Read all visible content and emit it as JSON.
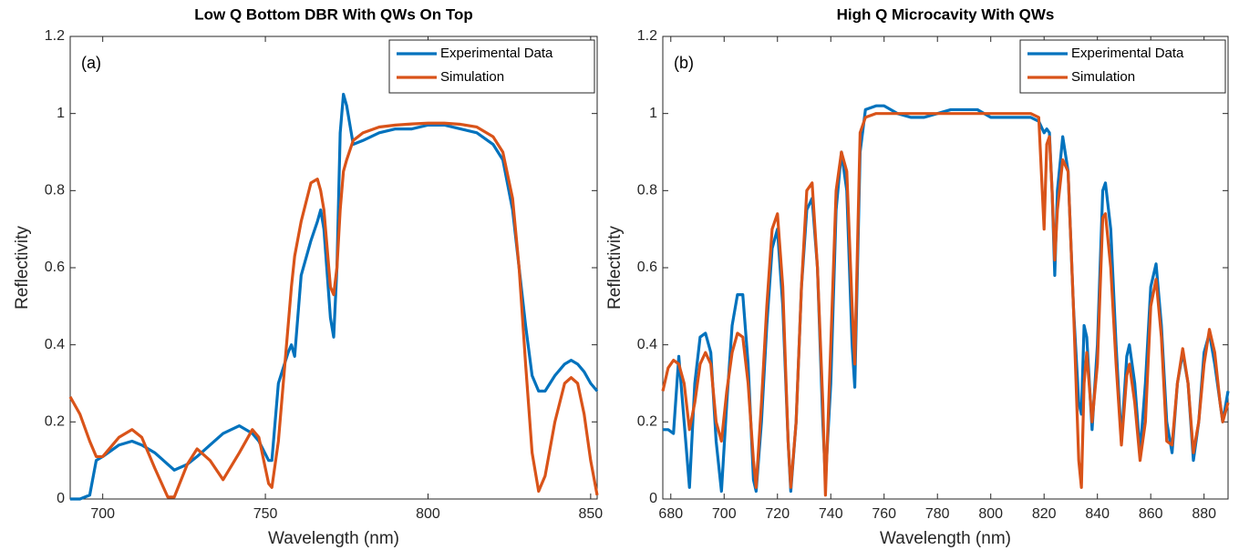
{
  "chart_data": [
    {
      "type": "line",
      "title": "Low Q Bottom DBR With QWs On Top",
      "x_label": "Wavelength (nm)",
      "y_label": "Reflectivity",
      "annotation": "(a)",
      "legend": "upper right",
      "x": [
        690,
        693,
        696,
        698,
        700,
        705,
        709,
        712,
        716,
        720,
        722,
        726,
        729,
        733,
        737,
        742,
        746,
        748,
        751,
        752,
        754,
        757,
        758,
        759,
        761,
        764,
        766,
        767,
        768,
        770,
        771,
        772,
        773,
        774,
        775,
        777,
        780,
        785,
        790,
        795,
        800,
        805,
        810,
        815,
        820,
        823,
        826,
        828,
        830,
        832,
        834,
        836,
        839,
        842,
        844,
        846,
        848,
        850,
        852
      ],
      "series": [
        {
          "name": "Experimental Data",
          "color": "#0072bd",
          "values": [
            0,
            0,
            0.01,
            0.1,
            0.11,
            0.14,
            0.15,
            0.14,
            0.12,
            0.09,
            0.075,
            0.09,
            0.11,
            0.14,
            0.17,
            0.19,
            0.17,
            0.15,
            0.1,
            0.1,
            0.3,
            0.38,
            0.4,
            0.37,
            0.58,
            0.67,
            0.72,
            0.75,
            0.7,
            0.47,
            0.42,
            0.6,
            0.95,
            1.05,
            1.02,
            0.92,
            0.93,
            0.95,
            0.96,
            0.96,
            0.97,
            0.97,
            0.96,
            0.95,
            0.92,
            0.88,
            0.75,
            0.6,
            0.45,
            0.32,
            0.28,
            0.28,
            0.32,
            0.35,
            0.36,
            0.35,
            0.33,
            0.3,
            0.28
          ]
        },
        {
          "name": "Simulation",
          "color": "#d95319",
          "values": [
            0.265,
            0.22,
            0.15,
            0.11,
            0.11,
            0.16,
            0.18,
            0.16,
            0.08,
            0.005,
            0.005,
            0.09,
            0.13,
            0.1,
            0.05,
            0.12,
            0.18,
            0.16,
            0.04,
            0.03,
            0.15,
            0.45,
            0.55,
            0.63,
            0.72,
            0.82,
            0.83,
            0.8,
            0.75,
            0.55,
            0.53,
            0.6,
            0.75,
            0.85,
            0.88,
            0.93,
            0.95,
            0.965,
            0.97,
            0.973,
            0.975,
            0.975,
            0.972,
            0.965,
            0.94,
            0.9,
            0.78,
            0.6,
            0.35,
            0.12,
            0.02,
            0.06,
            0.2,
            0.3,
            0.315,
            0.3,
            0.22,
            0.1,
            0.01
          ]
        }
      ],
      "xlim": [
        690,
        852
      ],
      "xticks": [
        700,
        750,
        800,
        850
      ],
      "ylim": [
        0,
        1.2
      ],
      "yticks": [
        0,
        0.2,
        0.4,
        0.6,
        0.8,
        1,
        1.2
      ]
    },
    {
      "type": "line",
      "title": "High Q Microcavity With QWs",
      "x_label": "Wavelength (nm)",
      "y_label": "Reflectivity",
      "annotation": "(b)",
      "legend": "upper right",
      "x": [
        677,
        679,
        681,
        683,
        685,
        687,
        689,
        691,
        693,
        695,
        697,
        699,
        701,
        703,
        705,
        707,
        709,
        711,
        712,
        714,
        716,
        718,
        720,
        722,
        724,
        725,
        727,
        729,
        731,
        733,
        735,
        737,
        738,
        740,
        742,
        744,
        746,
        748,
        749,
        751,
        753,
        757,
        760,
        765,
        770,
        775,
        780,
        785,
        790,
        795,
        800,
        805,
        810,
        815,
        818,
        820,
        821,
        822,
        823,
        824,
        825,
        827,
        829,
        831,
        833,
        834,
        835,
        836,
        838,
        840,
        842,
        843,
        845,
        847,
        849,
        851,
        852,
        854,
        856,
        858,
        860,
        862,
        864,
        866,
        868,
        870,
        872,
        874,
        876,
        878,
        880,
        882,
        884,
        886,
        887,
        889
      ],
      "series": [
        {
          "name": "Experimental Data",
          "color": "#0072bd",
          "values": [
            0.18,
            0.18,
            0.17,
            0.37,
            0.2,
            0.03,
            0.3,
            0.42,
            0.43,
            0.38,
            0.15,
            0.02,
            0.25,
            0.45,
            0.53,
            0.53,
            0.35,
            0.05,
            0.02,
            0.2,
            0.45,
            0.65,
            0.7,
            0.5,
            0.15,
            0.02,
            0.2,
            0.55,
            0.75,
            0.78,
            0.6,
            0.2,
            0.05,
            0.3,
            0.75,
            0.9,
            0.8,
            0.4,
            0.29,
            0.9,
            1.01,
            1.02,
            1.02,
            1,
            0.99,
            0.99,
            1,
            1.01,
            1.01,
            1.01,
            0.99,
            0.99,
            0.99,
            0.99,
            0.98,
            0.95,
            0.96,
            0.95,
            0.8,
            0.58,
            0.8,
            0.94,
            0.85,
            0.5,
            0.25,
            0.22,
            0.45,
            0.42,
            0.18,
            0.4,
            0.8,
            0.82,
            0.7,
            0.4,
            0.15,
            0.37,
            0.4,
            0.3,
            0.12,
            0.3,
            0.55,
            0.61,
            0.45,
            0.2,
            0.12,
            0.3,
            0.38,
            0.3,
            0.1,
            0.2,
            0.38,
            0.43,
            0.35,
            0.25,
            0.2,
            0.28
          ]
        },
        {
          "name": "Simulation",
          "color": "#d95319",
          "values": [
            0.28,
            0.34,
            0.36,
            0.35,
            0.3,
            0.18,
            0.25,
            0.35,
            0.38,
            0.35,
            0.2,
            0.15,
            0.28,
            0.38,
            0.43,
            0.42,
            0.3,
            0.1,
            0.03,
            0.25,
            0.5,
            0.7,
            0.74,
            0.55,
            0.15,
            0.03,
            0.2,
            0.55,
            0.8,
            0.82,
            0.6,
            0.25,
            0.01,
            0.4,
            0.8,
            0.9,
            0.85,
            0.5,
            0.35,
            0.95,
            0.99,
            1,
            1,
            1,
            1,
            1,
            1,
            1,
            1,
            1,
            1,
            1,
            1,
            1,
            0.99,
            0.7,
            0.92,
            0.94,
            0.8,
            0.62,
            0.75,
            0.88,
            0.85,
            0.5,
            0.1,
            0.03,
            0.3,
            0.38,
            0.2,
            0.35,
            0.73,
            0.74,
            0.6,
            0.35,
            0.14,
            0.32,
            0.35,
            0.25,
            0.1,
            0.2,
            0.5,
            0.57,
            0.42,
            0.15,
            0.14,
            0.3,
            0.39,
            0.3,
            0.12,
            0.2,
            0.35,
            0.44,
            0.38,
            0.25,
            0.2,
            0.25
          ]
        }
      ],
      "xlim": [
        677,
        889
      ],
      "xticks": [
        680,
        700,
        720,
        740,
        760,
        780,
        800,
        820,
        840,
        860,
        880
      ],
      "ylim": [
        0,
        1.2
      ],
      "yticks": [
        0,
        0.2,
        0.4,
        0.6,
        0.8,
        1,
        1.2
      ]
    }
  ]
}
